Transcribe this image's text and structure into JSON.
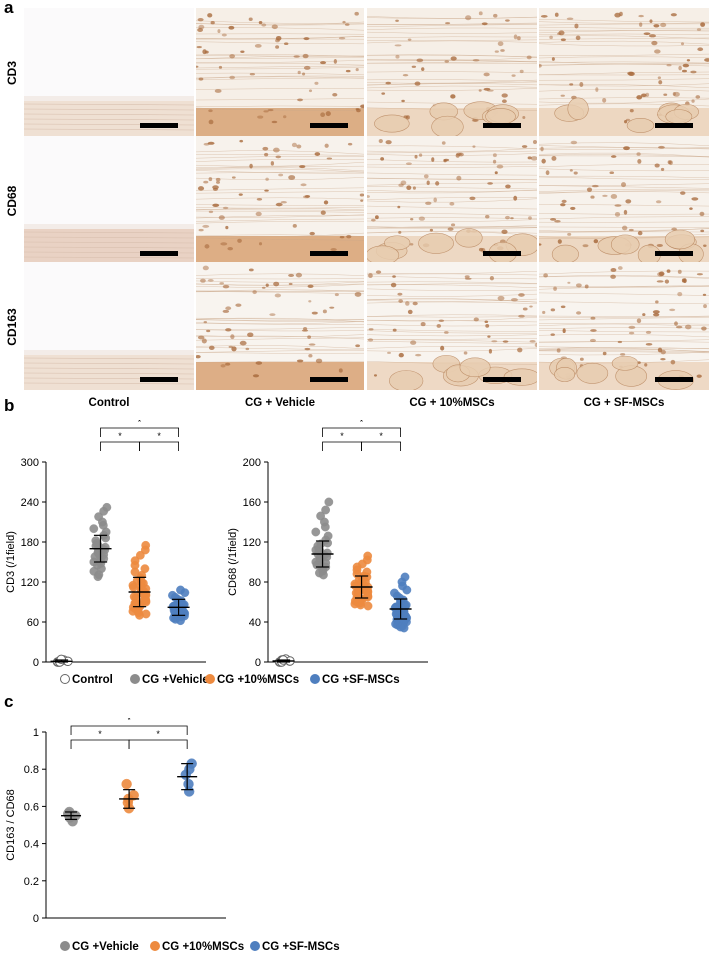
{
  "panel_a": {
    "letter": "a",
    "rows": [
      "CD3",
      "CD68",
      "CD163"
    ],
    "columns": [
      "Control",
      "CG + Vehicle",
      "CG + 10%MSCs",
      "CG + SF-MSCs"
    ]
  },
  "panel_b": {
    "letter": "b"
  },
  "panel_c": {
    "letter": "c"
  },
  "significance_marker": "*",
  "colors": {
    "control": "#ffffff",
    "vehicle": "#8c8c8c",
    "msc10": "#ed8a3f",
    "sfmsc": "#4f7fbf"
  },
  "chart_data": [
    {
      "type": "scatter",
      "panel": "b-left",
      "ylabel": "CD3 (/1field)",
      "ylim": [
        0,
        300
      ],
      "yticks": [
        0,
        60,
        120,
        180,
        240,
        300
      ],
      "groups": [
        "Control",
        "CG +Vehicle",
        "CG +10%MSCs",
        "CG +SF-MSCs"
      ],
      "series": [
        {
          "name": "Control",
          "mean": 1,
          "sd": 2,
          "values": [
            0,
            0,
            1,
            2,
            3,
            0,
            1,
            2,
            0,
            4
          ]
        },
        {
          "name": "CG +Vehicle",
          "mean": 170,
          "sd": 20,
          "values": [
            232,
            226,
            218,
            210,
            205,
            200,
            195,
            190,
            186,
            182,
            178,
            175,
            172,
            170,
            168,
            166,
            164,
            161,
            158,
            155,
            152,
            148,
            145,
            140,
            136,
            131,
            128,
            150,
            160,
            174
          ]
        },
        {
          "name": "CG +10%MSCs",
          "mean": 105,
          "sd": 22,
          "values": [
            175,
            168,
            160,
            152,
            145,
            140,
            135,
            130,
            126,
            122,
            118,
            115,
            112,
            110,
            108,
            106,
            104,
            102,
            100,
            98,
            96,
            94,
            92,
            90,
            88,
            86,
            84,
            82,
            80,
            78,
            76,
            74,
            72,
            70,
            120,
            108,
            98,
            88,
            92,
            113
          ]
        },
        {
          "name": "CG +SF-MSCs",
          "mean": 82,
          "sd": 12,
          "values": [
            108,
            104,
            100,
            97,
            94,
            92,
            90,
            88,
            86,
            85,
            84,
            83,
            82,
            81,
            80,
            79,
            78,
            77,
            76,
            75,
            74,
            73,
            72,
            71,
            70,
            69,
            68,
            66,
            64,
            62,
            86,
            80,
            76,
            84
          ]
        }
      ],
      "significance": [
        [
          "CG +Vehicle",
          "CG +10%MSCs"
        ],
        [
          "CG +10%MSCs",
          "CG +SF-MSCs"
        ],
        [
          "CG +Vehicle",
          "CG +SF-MSCs"
        ]
      ]
    },
    {
      "type": "scatter",
      "panel": "b-right",
      "ylabel": "CD68 (/1field)",
      "ylim": [
        0,
        200
      ],
      "yticks": [
        0,
        40,
        80,
        120,
        160,
        200
      ],
      "groups": [
        "Control",
        "CG +Vehicle",
        "CG +10%MSCs",
        "CG +SF-MSCs"
      ],
      "series": [
        {
          "name": "Control",
          "mean": 1,
          "sd": 1,
          "values": [
            0,
            0,
            1,
            2,
            3,
            0,
            1,
            2,
            0,
            2
          ]
        },
        {
          "name": "CG +Vehicle",
          "mean": 108,
          "sd": 13,
          "values": [
            160,
            152,
            146,
            140,
            135,
            130,
            126,
            122,
            119,
            116,
            113,
            111,
            109,
            107,
            105,
            103,
            101,
            99,
            97,
            95,
            93,
            91,
            89,
            87,
            112,
            118,
            104,
            100,
            96,
            108
          ]
        },
        {
          "name": "CG +10%MSCs",
          "mean": 75,
          "sd": 11,
          "values": [
            106,
            102,
            98,
            95,
            92,
            90,
            88,
            86,
            84,
            82,
            80,
            78,
            76,
            75,
            74,
            73,
            72,
            71,
            70,
            69,
            68,
            67,
            66,
            65,
            64,
            63,
            62,
            61,
            60,
            59,
            58,
            57,
            56,
            80,
            77,
            73,
            85,
            70
          ]
        },
        {
          "name": "CG +SF-MSCs",
          "mean": 53,
          "sd": 10,
          "values": [
            85,
            80,
            76,
            72,
            69,
            66,
            64,
            62,
            60,
            58,
            57,
            56,
            55,
            54,
            53,
            52,
            51,
            50,
            49,
            48,
            47,
            46,
            45,
            44,
            43,
            42,
            41,
            40,
            39,
            38,
            37,
            36,
            35,
            34,
            60,
            55,
            50,
            46
          ]
        }
      ],
      "significance": [
        [
          "CG +Vehicle",
          "CG +10%MSCs"
        ],
        [
          "CG +10%MSCs",
          "CG +SF-MSCs"
        ],
        [
          "CG +Vehicle",
          "CG +SF-MSCs"
        ]
      ]
    },
    {
      "type": "scatter",
      "panel": "c",
      "ylabel": "CD163 / CD68",
      "ylim": [
        0,
        1
      ],
      "yticks": [
        0,
        0.2,
        0.4,
        0.6,
        0.8,
        1
      ],
      "groups": [
        "CG +Vehicle",
        "CG +10%MSCs",
        "CG +SF-MSCs"
      ],
      "series": [
        {
          "name": "CG +Vehicle",
          "mean": 0.55,
          "sd": 0.02,
          "values": [
            0.57,
            0.56,
            0.55,
            0.54,
            0.52
          ]
        },
        {
          "name": "CG +10%MSCs",
          "mean": 0.64,
          "sd": 0.05,
          "values": [
            0.72,
            0.66,
            0.64,
            0.62,
            0.59
          ]
        },
        {
          "name": "CG +SF-MSCs",
          "mean": 0.76,
          "sd": 0.07,
          "values": [
            0.83,
            0.8,
            0.77,
            0.72,
            0.68
          ]
        }
      ],
      "significance": [
        [
          "CG +Vehicle",
          "CG +10%MSCs"
        ],
        [
          "CG +10%MSCs",
          "CG +SF-MSCs"
        ],
        [
          "CG +Vehicle",
          "CG +SF-MSCs"
        ]
      ]
    }
  ]
}
